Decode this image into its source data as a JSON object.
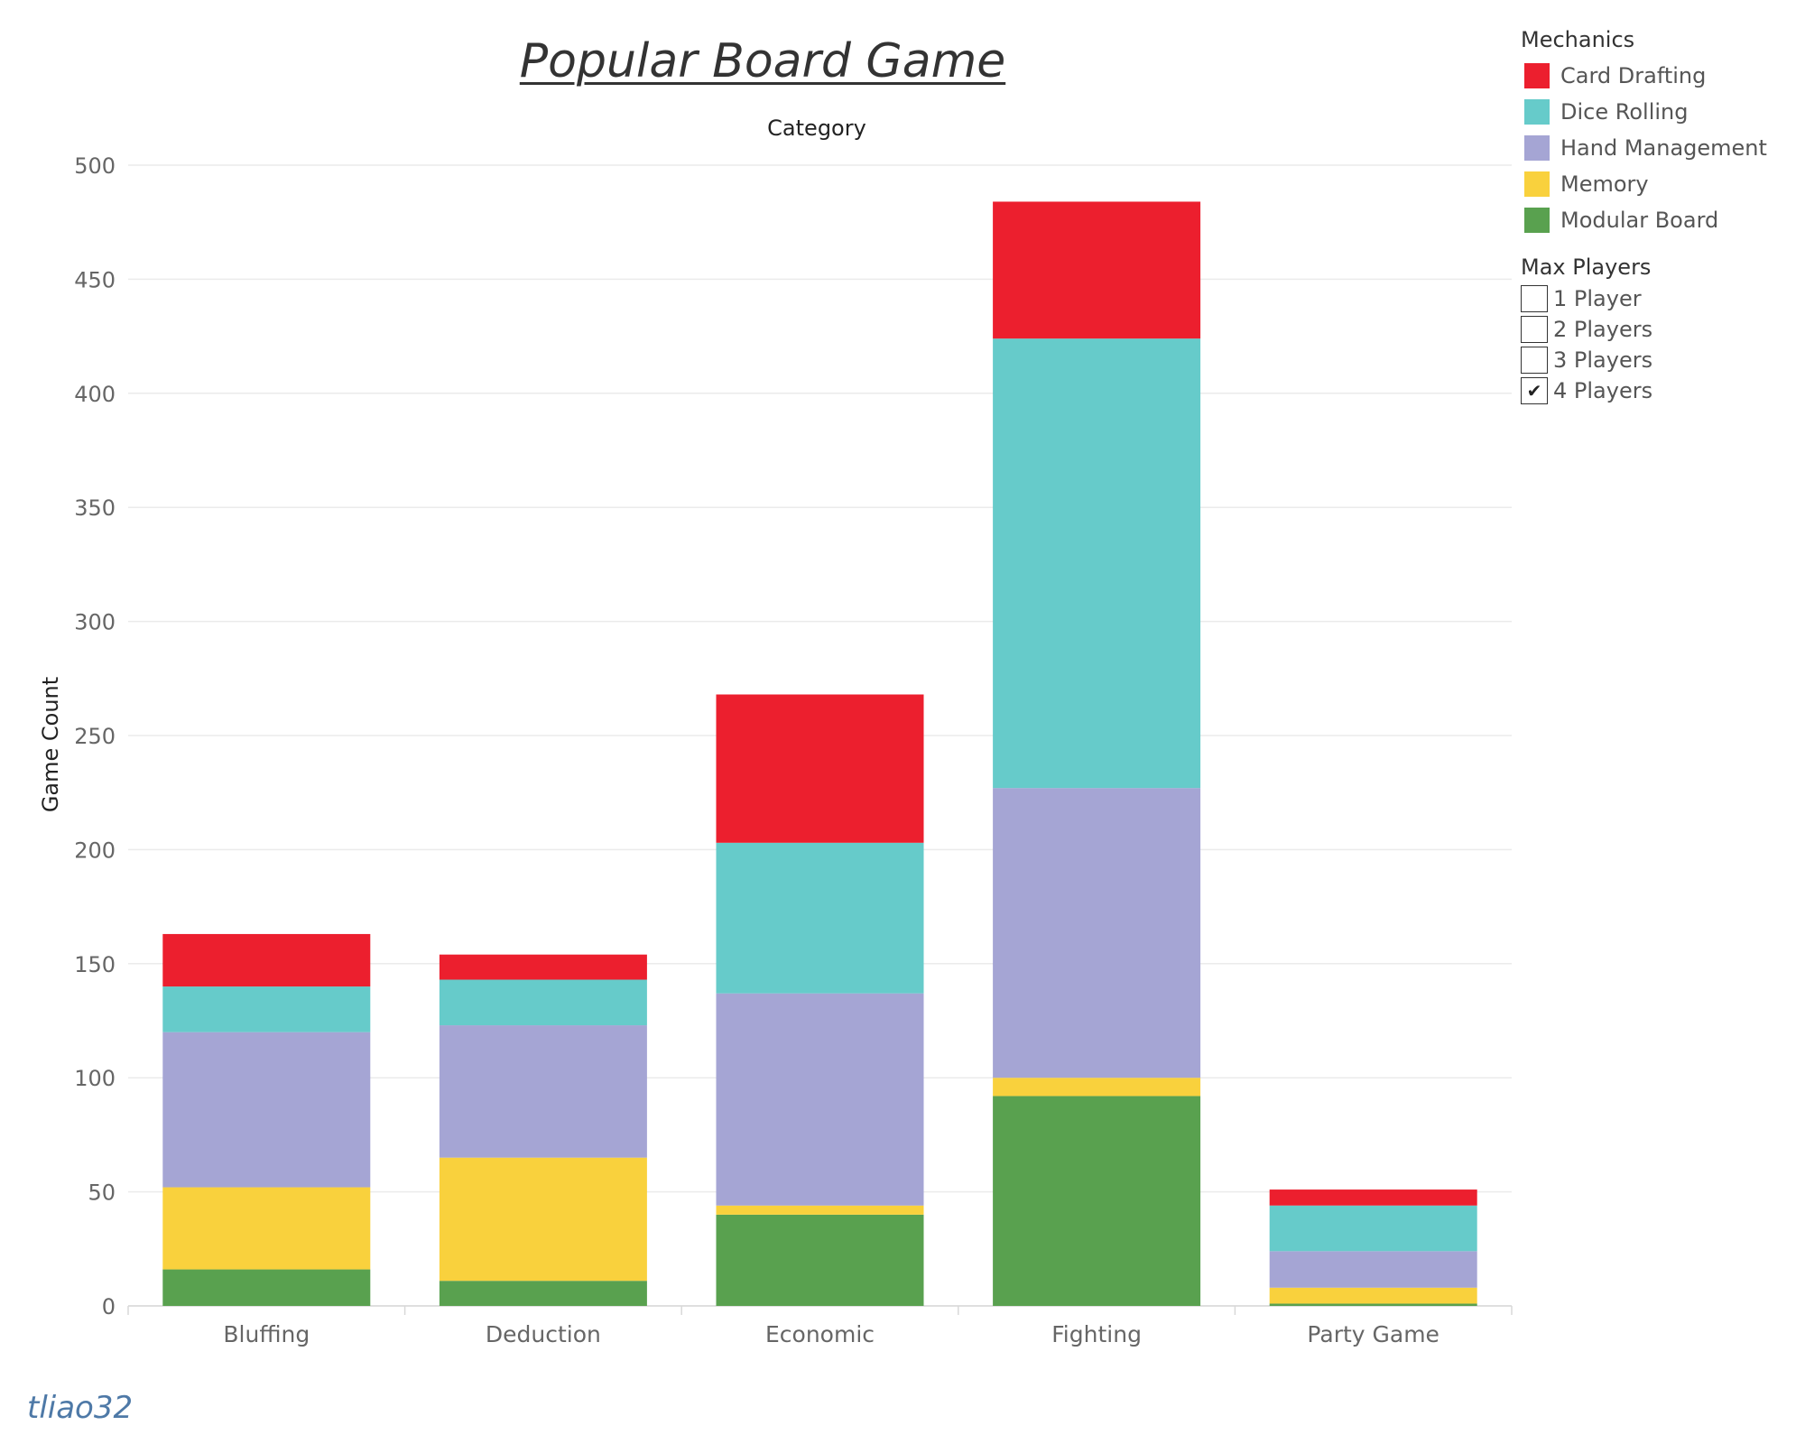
{
  "chart_data": {
    "type": "bar",
    "stacked": true,
    "title": "Popular Board Game",
    "xlabel": "Category",
    "ylabel": "Game Count",
    "categories": [
      "Bluffing",
      "Deduction",
      "Economic",
      "Fighting",
      "Party Game"
    ],
    "ylim": [
      0,
      500
    ],
    "yticks": [
      0,
      50,
      100,
      150,
      200,
      250,
      300,
      350,
      400,
      450,
      500
    ],
    "grid": true,
    "legend_position": "right",
    "series": [
      {
        "name": "Modular Board",
        "color": "#59a14f",
        "values": [
          16,
          11,
          40,
          92,
          1
        ]
      },
      {
        "name": "Memory",
        "color": "#f9d13d",
        "values": [
          36,
          54,
          4,
          8,
          7
        ]
      },
      {
        "name": "Hand Management",
        "color": "#a5a5d4",
        "values": [
          68,
          58,
          93,
          127,
          16
        ]
      },
      {
        "name": "Dice Rolling",
        "color": "#66cbca",
        "values": [
          20,
          20,
          66,
          197,
          20
        ]
      },
      {
        "name": "Card Drafting",
        "color": "#ec1f2e",
        "values": [
          23,
          11,
          65,
          60,
          7
        ]
      }
    ]
  },
  "legend": {
    "title": "Mechanics",
    "items": [
      {
        "label": "Card Drafting",
        "color": "#ec1f2e"
      },
      {
        "label": "Dice Rolling",
        "color": "#66cbca"
      },
      {
        "label": "Hand Management",
        "color": "#a5a5d4"
      },
      {
        "label": "Memory",
        "color": "#f9d13d"
      },
      {
        "label": "Modular Board",
        "color": "#59a14f"
      }
    ]
  },
  "filter": {
    "title": "Max Players",
    "options": [
      {
        "label": "1 Player",
        "checked": false
      },
      {
        "label": "2 Players",
        "checked": false
      },
      {
        "label": "3 Players",
        "checked": false
      },
      {
        "label": "4 Players",
        "checked": true
      }
    ]
  },
  "signature": "tliao32"
}
